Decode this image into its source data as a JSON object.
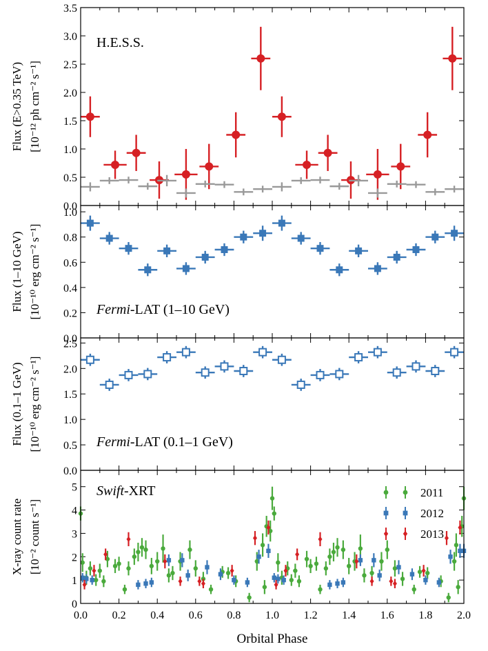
{
  "figure": {
    "xlabel": "Orbital Phase",
    "xticks": [
      "0.0",
      "0.2",
      "0.4",
      "0.6",
      "0.8",
      "1.0",
      "1.2",
      "1.4",
      "1.6",
      "1.8",
      "2.0"
    ]
  },
  "colors": {
    "hess": "#d62024",
    "hess_bg": "#999999",
    "fermi": "#3a78b8",
    "y2011": "#4aaa3c",
    "y2012": "#3a78b8",
    "y2013": "#d62024"
  },
  "chart_data": [
    {
      "type": "scatter",
      "panel": "hess",
      "annotation": "H.E.S.S.",
      "ylabel_line1": "Flux (E>0.35 TeV)",
      "ylabel_line2": "[10⁻¹² ph cm⁻² s⁻¹]",
      "ylim": [
        0,
        3.5
      ],
      "yticks": [
        "0.0",
        "0.5",
        "1.0",
        "1.5",
        "2.0",
        "2.5",
        "3.0",
        "3.5"
      ],
      "xlim": [
        0,
        2
      ],
      "series": [
        {
          "style": "filled-circle",
          "color": "#d62024",
          "x": [
            0.05,
            0.18,
            0.29,
            0.41,
            0.55,
            0.67,
            0.81,
            0.94,
            1.05,
            1.18,
            1.29,
            1.41,
            1.55,
            1.67,
            1.81,
            1.94
          ],
          "xerr": [
            0.05,
            0.06,
            0.05,
            0.05,
            0.06,
            0.05,
            0.05,
            0.05,
            0.05,
            0.06,
            0.05,
            0.05,
            0.06,
            0.05,
            0.05,
            0.05
          ],
          "y": [
            1.57,
            0.72,
            0.93,
            0.45,
            0.55,
            0.69,
            1.25,
            2.6,
            1.57,
            0.72,
            0.93,
            0.45,
            0.55,
            0.69,
            1.25,
            2.6
          ],
          "yerr": [
            0.36,
            0.25,
            0.32,
            0.33,
            0.45,
            0.4,
            0.4,
            0.56,
            0.36,
            0.25,
            0.32,
            0.33,
            0.45,
            0.4,
            0.4,
            0.56
          ]
        },
        {
          "style": "cross",
          "color": "#999999",
          "x": [
            0.05,
            0.15,
            0.25,
            0.35,
            0.45,
            0.55,
            0.65,
            0.75,
            0.85,
            0.95,
            1.05,
            1.15,
            1.25,
            1.35,
            1.45,
            1.55,
            1.65,
            1.75,
            1.85,
            1.95
          ],
          "xerr": [
            0.05,
            0.05,
            0.05,
            0.05,
            0.05,
            0.05,
            0.05,
            0.05,
            0.05,
            0.05,
            0.05,
            0.05,
            0.05,
            0.05,
            0.05,
            0.05,
            0.05,
            0.05,
            0.05,
            0.05
          ],
          "y": [
            0.33,
            0.44,
            0.45,
            0.34,
            0.44,
            0.22,
            0.38,
            0.37,
            0.24,
            0.29,
            0.33,
            0.44,
            0.45,
            0.34,
            0.44,
            0.22,
            0.38,
            0.37,
            0.24,
            0.29
          ],
          "yerr": [
            0.08,
            0.06,
            0.06,
            0.06,
            0.1,
            0.08,
            0.06,
            0.06,
            0.06,
            0.06,
            0.08,
            0.06,
            0.06,
            0.06,
            0.1,
            0.08,
            0.06,
            0.06,
            0.06,
            0.06
          ]
        }
      ]
    },
    {
      "type": "scatter",
      "panel": "fermi_high",
      "annotation_italic": "Fermi",
      "annotation_rest": "-LAT (1–10 GeV)",
      "ylabel_line1": "Flux (1–10 GeV)",
      "ylabel_line2": "[10⁻¹⁰ erg cm⁻² s⁻¹]",
      "ylim": [
        0,
        1.05
      ],
      "yticks": [
        "0.0",
        "0.2",
        "0.4",
        "0.6",
        "0.8",
        "1.0"
      ],
      "xlim": [
        0,
        2
      ],
      "series": [
        {
          "style": "filled-square",
          "color": "#3a78b8",
          "x": [
            0.05,
            0.15,
            0.25,
            0.35,
            0.45,
            0.55,
            0.65,
            0.75,
            0.85,
            0.95,
            1.05,
            1.15,
            1.25,
            1.35,
            1.45,
            1.55,
            1.65,
            1.75,
            1.85,
            1.95
          ],
          "xerr": [
            0.05,
            0.05,
            0.05,
            0.05,
            0.05,
            0.05,
            0.05,
            0.05,
            0.05,
            0.05,
            0.05,
            0.05,
            0.05,
            0.05,
            0.05,
            0.05,
            0.05,
            0.05,
            0.05,
            0.05
          ],
          "y": [
            0.91,
            0.79,
            0.71,
            0.54,
            0.69,
            0.55,
            0.64,
            0.7,
            0.8,
            0.83,
            0.91,
            0.79,
            0.71,
            0.54,
            0.69,
            0.55,
            0.64,
            0.7,
            0.8,
            0.83
          ],
          "yerr": [
            0.06,
            0.05,
            0.05,
            0.05,
            0.05,
            0.05,
            0.05,
            0.05,
            0.05,
            0.06,
            0.06,
            0.05,
            0.05,
            0.05,
            0.05,
            0.05,
            0.05,
            0.05,
            0.05,
            0.06
          ]
        }
      ]
    },
    {
      "type": "scatter",
      "panel": "fermi_low",
      "annotation_italic": "Fermi",
      "annotation_rest": "-LAT (0.1–1 GeV)",
      "ylabel_line1": "Flux (0.1–1 GeV)",
      "ylabel_line2": "[10⁻¹⁰ erg cm⁻² s⁻¹]",
      "ylim": [
        0,
        2.6
      ],
      "yticks": [
        "0.0",
        "0.5",
        "1.0",
        "1.5",
        "2.0",
        "2.5"
      ],
      "xlim": [
        0,
        2
      ],
      "series": [
        {
          "style": "open-square",
          "color": "#3a78b8",
          "x": [
            0.05,
            0.15,
            0.25,
            0.35,
            0.45,
            0.55,
            0.65,
            0.75,
            0.85,
            0.95,
            1.05,
            1.15,
            1.25,
            1.35,
            1.45,
            1.55,
            1.65,
            1.75,
            1.85,
            1.95
          ],
          "xerr": [
            0.05,
            0.05,
            0.05,
            0.05,
            0.05,
            0.05,
            0.05,
            0.05,
            0.05,
            0.05,
            0.05,
            0.05,
            0.05,
            0.05,
            0.05,
            0.05,
            0.05,
            0.05,
            0.05,
            0.05
          ],
          "y": [
            2.17,
            1.68,
            1.87,
            1.89,
            2.22,
            2.32,
            1.92,
            2.04,
            1.95,
            2.32,
            2.17,
            1.68,
            1.87,
            1.89,
            2.22,
            2.32,
            1.92,
            2.04,
            1.95,
            2.32
          ],
          "yerr": [
            0.12,
            0.12,
            0.12,
            0.12,
            0.12,
            0.12,
            0.12,
            0.12,
            0.12,
            0.12,
            0.12,
            0.12,
            0.12,
            0.12,
            0.12,
            0.12,
            0.12,
            0.12,
            0.12,
            0.12
          ]
        }
      ]
    },
    {
      "type": "scatter",
      "panel": "swift",
      "annotation_italic": "Swift",
      "annotation_rest": "-XRT",
      "ylabel_line1": "X-ray count rate",
      "ylabel_line2": "[10⁻² count s⁻¹]",
      "ylim": [
        0,
        5.7
      ],
      "yticks": [
        "0",
        "1",
        "2",
        "3",
        "4",
        "5"
      ],
      "xlim": [
        0,
        2
      ],
      "legend": "top-right",
      "series": [
        {
          "name": "2011",
          "style": "filled-circle-small",
          "color": "#4aaa3c",
          "x": [
            0.0,
            0.01,
            0.03,
            0.05,
            0.08,
            0.1,
            0.12,
            0.14,
            0.18,
            0.2,
            0.23,
            0.25,
            0.28,
            0.3,
            0.32,
            0.34,
            0.37,
            0.4,
            0.43,
            0.46,
            0.48,
            0.52,
            0.57,
            0.6,
            0.64,
            0.68,
            0.74,
            0.77,
            0.81,
            0.88,
            0.92,
            0.95,
            0.96,
            0.97,
            0.99,
            1.0,
            1.01,
            1.03,
            1.05,
            1.08,
            1.1,
            1.12,
            1.14,
            1.18,
            1.2,
            1.23,
            1.25,
            1.28,
            1.3,
            1.32,
            1.34,
            1.37,
            1.4,
            1.43,
            1.46,
            1.48,
            1.52,
            1.57,
            1.6,
            1.64,
            1.68,
            1.74,
            1.77,
            1.81,
            1.88,
            1.92,
            1.95,
            1.96,
            1.97,
            1.99,
            2.0
          ],
          "y": [
            3.85,
            1.75,
            1.1,
            1.5,
            1.0,
            1.4,
            0.95,
            1.9,
            1.6,
            1.7,
            0.6,
            1.5,
            2.0,
            2.2,
            2.4,
            2.3,
            1.6,
            1.8,
            2.35,
            1.2,
            1.3,
            1.8,
            2.3,
            1.5,
            1.05,
            0.6,
            1.35,
            1.3,
            0.95,
            0.25,
            1.8,
            2.5,
            0.7,
            3.3,
            3.1,
            4.5,
            3.85,
            1.75,
            1.1,
            1.5,
            1.0,
            1.4,
            0.95,
            1.9,
            1.6,
            1.7,
            0.6,
            1.5,
            2.0,
            2.2,
            2.4,
            2.3,
            1.6,
            1.8,
            2.35,
            1.2,
            1.3,
            1.8,
            2.3,
            1.5,
            1.05,
            0.6,
            1.35,
            1.3,
            0.95,
            0.25,
            1.8,
            2.5,
            0.7,
            3.3,
            4.5
          ],
          "yerr": [
            0.3,
            0.4,
            0.3,
            0.3,
            0.25,
            0.3,
            0.25,
            0.35,
            0.3,
            0.3,
            0.2,
            0.3,
            0.35,
            0.4,
            0.4,
            0.4,
            0.35,
            0.4,
            0.6,
            0.3,
            0.3,
            0.4,
            0.4,
            0.35,
            0.3,
            0.2,
            0.25,
            0.25,
            0.25,
            0.2,
            0.4,
            0.5,
            0.3,
            0.45,
            0.45,
            0.5,
            0.3,
            0.4,
            0.3,
            0.3,
            0.25,
            0.3,
            0.25,
            0.35,
            0.3,
            0.3,
            0.2,
            0.3,
            0.35,
            0.4,
            0.4,
            0.4,
            0.35,
            0.4,
            0.6,
            0.3,
            0.3,
            0.4,
            0.4,
            0.35,
            0.3,
            0.2,
            0.25,
            0.25,
            0.25,
            0.2,
            0.4,
            0.5,
            0.3,
            0.45,
            0.5
          ]
        },
        {
          "name": "2012",
          "style": "filled-square-small",
          "color": "#3a78b8",
          "x": [
            0.01,
            0.03,
            0.06,
            0.3,
            0.34,
            0.37,
            0.46,
            0.53,
            0.56,
            0.66,
            0.73,
            0.8,
            0.87,
            0.93,
            0.98,
            1.01,
            1.03,
            1.06,
            1.3,
            1.34,
            1.37,
            1.46,
            1.53,
            1.56,
            1.66,
            1.73,
            1.8,
            1.87,
            1.93,
            1.98,
            2.0
          ],
          "y": [
            1.1,
            1.05,
            1.0,
            0.8,
            0.85,
            0.9,
            1.85,
            1.85,
            1.2,
            1.55,
            1.25,
            1.0,
            0.9,
            2.0,
            2.25,
            1.1,
            1.05,
            1.0,
            0.8,
            0.85,
            0.9,
            1.85,
            1.85,
            1.2,
            1.55,
            1.25,
            1.0,
            0.9,
            2.0,
            2.25,
            2.25
          ],
          "yerr": [
            0.2,
            0.2,
            0.2,
            0.2,
            0.2,
            0.2,
            0.25,
            0.3,
            0.25,
            0.3,
            0.25,
            0.2,
            0.2,
            0.3,
            0.3,
            0.2,
            0.2,
            0.2,
            0.2,
            0.2,
            0.2,
            0.25,
            0.3,
            0.25,
            0.3,
            0.25,
            0.2,
            0.2,
            0.3,
            0.3,
            0.3
          ]
        },
        {
          "name": "2013",
          "style": "filled-diamond-small",
          "color": "#d62024",
          "x": [
            0.02,
            0.07,
            0.13,
            0.25,
            0.44,
            0.52,
            0.62,
            0.64,
            0.79,
            0.91,
            0.98,
            1.02,
            1.07,
            1.13,
            1.25,
            1.44,
            1.52,
            1.62,
            1.64,
            1.79,
            1.91,
            1.98
          ],
          "y": [
            0.8,
            1.4,
            2.1,
            2.75,
            1.8,
            0.95,
            0.95,
            0.85,
            1.4,
            2.8,
            3.25,
            0.8,
            1.4,
            2.1,
            2.75,
            1.8,
            0.95,
            0.95,
            0.85,
            1.4,
            2.8,
            3.25
          ],
          "yerr": [
            0.2,
            0.25,
            0.25,
            0.3,
            0.3,
            0.2,
            0.2,
            0.2,
            0.25,
            0.3,
            0.3,
            0.2,
            0.25,
            0.25,
            0.3,
            0.3,
            0.2,
            0.2,
            0.2,
            0.25,
            0.3,
            0.3
          ]
        }
      ]
    }
  ]
}
